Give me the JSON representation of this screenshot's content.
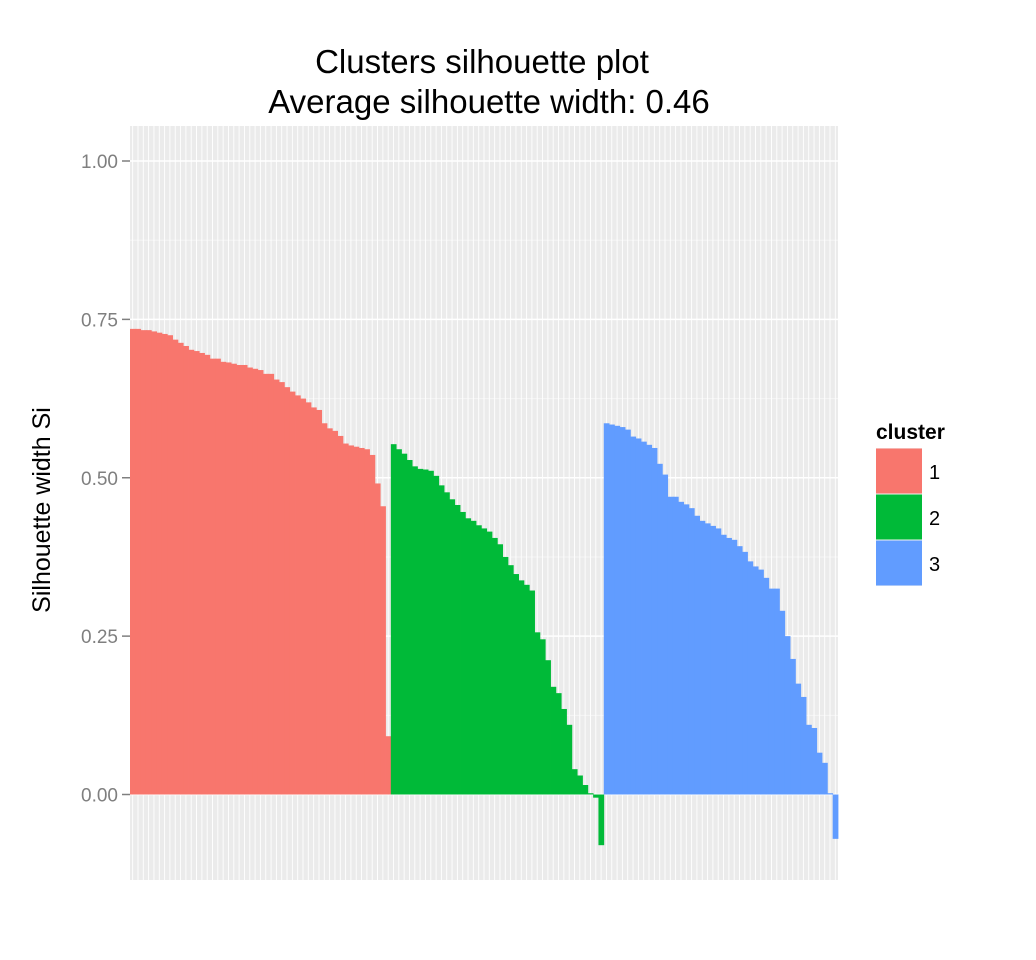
{
  "chart_data": {
    "type": "bar",
    "title": "Clusters silhouette plot",
    "subtitle": "Average silhouette width: 0.46",
    "xlabel": "",
    "ylabel": "Silhouette width Si",
    "ylim": [
      -0.13,
      1.06
    ],
    "yticks": [
      {
        "value": 0.0,
        "label": "0.00"
      },
      {
        "value": 0.25,
        "label": "0.25"
      },
      {
        "value": 0.5,
        "label": "0.50"
      },
      {
        "value": 0.75,
        "label": "0.75"
      },
      {
        "value": 1.0,
        "label": "1.00"
      }
    ],
    "grid": true,
    "legend": {
      "title": "cluster",
      "position": "right",
      "items": [
        {
          "label": "1",
          "color": "#F8766D"
        },
        {
          "label": "2",
          "color": "#00BA38"
        },
        {
          "label": "3",
          "color": "#619CFF"
        }
      ]
    },
    "series": [
      {
        "cluster": "1",
        "color": "#F8766D",
        "values": [
          0.735,
          0.735,
          0.733,
          0.733,
          0.731,
          0.729,
          0.727,
          0.725,
          0.718,
          0.713,
          0.708,
          0.702,
          0.7,
          0.697,
          0.694,
          0.688,
          0.688,
          0.683,
          0.682,
          0.68,
          0.678,
          0.678,
          0.674,
          0.672,
          0.67,
          0.664,
          0.664,
          0.655,
          0.651,
          0.643,
          0.636,
          0.63,
          0.625,
          0.619,
          0.611,
          0.607,
          0.586,
          0.578,
          0.574,
          0.566,
          0.554,
          0.551,
          0.549,
          0.547,
          0.545,
          0.536,
          0.491,
          0.455,
          0.092
        ]
      },
      {
        "cluster": "2",
        "color": "#00BA38",
        "values": [
          0.553,
          0.545,
          0.538,
          0.528,
          0.518,
          0.514,
          0.513,
          0.511,
          0.503,
          0.488,
          0.477,
          0.466,
          0.457,
          0.446,
          0.436,
          0.432,
          0.425,
          0.42,
          0.415,
          0.405,
          0.395,
          0.375,
          0.362,
          0.348,
          0.338,
          0.331,
          0.322,
          0.256,
          0.245,
          0.212,
          0.17,
          0.16,
          0.135,
          0.11,
          0.04,
          0.03,
          0.015,
          0.002,
          -0.005,
          -0.08
        ]
      },
      {
        "cluster": "3",
        "color": "#619CFF",
        "values": [
          0.586,
          0.584,
          0.582,
          0.58,
          0.576,
          0.565,
          0.562,
          0.557,
          0.552,
          0.547,
          0.522,
          0.505,
          0.47,
          0.47,
          0.462,
          0.458,
          0.452,
          0.44,
          0.432,
          0.428,
          0.424,
          0.42,
          0.41,
          0.405,
          0.402,
          0.392,
          0.383,
          0.368,
          0.36,
          0.355,
          0.342,
          0.325,
          0.325,
          0.29,
          0.25,
          0.214,
          0.175,
          0.154,
          0.11,
          0.105,
          0.066,
          0.05,
          0.002,
          -0.07
        ]
      }
    ]
  }
}
